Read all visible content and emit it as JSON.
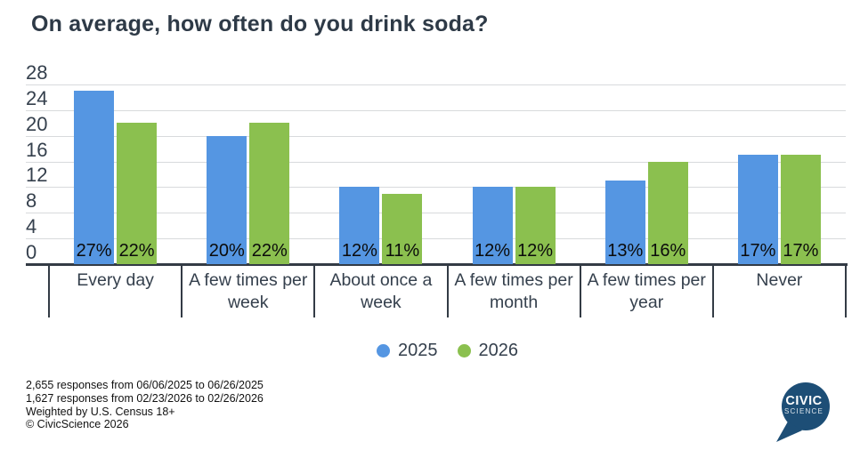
{
  "header": {
    "title": "On average, how often do you drink soda?"
  },
  "chart_data": {
    "type": "bar",
    "title": "On average, how often do you drink soda?",
    "categories": [
      "Every day",
      "A few times per week",
      "About once a week",
      "A few times per month",
      "A few times per year",
      "Never"
    ],
    "series": [
      {
        "name": "2025",
        "color": "#5596e2",
        "values": [
          27,
          20,
          12,
          12,
          13,
          17
        ]
      },
      {
        "name": "2026",
        "color": "#8bc04f",
        "values": [
          22,
          22,
          11,
          12,
          16,
          17
        ]
      }
    ],
    "value_suffix": "%",
    "xlabel": "",
    "ylabel": "",
    "y_axis": {
      "min": 0,
      "max": 28,
      "tick_step": 4,
      "ticks": [
        0,
        4,
        8,
        12,
        16,
        20,
        24,
        28
      ]
    },
    "grid": true,
    "legend_position": "bottom",
    "colors": {
      "grid": "#d8dadc",
      "axis": "#333b45",
      "text": "#35404d",
      "bar_label": "#0b0b0b"
    }
  },
  "footnotes": {
    "lines": [
      "2,655 responses from 06/06/2025 to 06/26/2025",
      "1,627 responses from 02/23/2026 to 02/26/2026",
      "Weighted by U.S. Census 18+",
      "© CivicScience 2026"
    ]
  },
  "logo": {
    "word1": "CIVIC",
    "word2": "SCIENCE",
    "color": "#1d4e76"
  }
}
